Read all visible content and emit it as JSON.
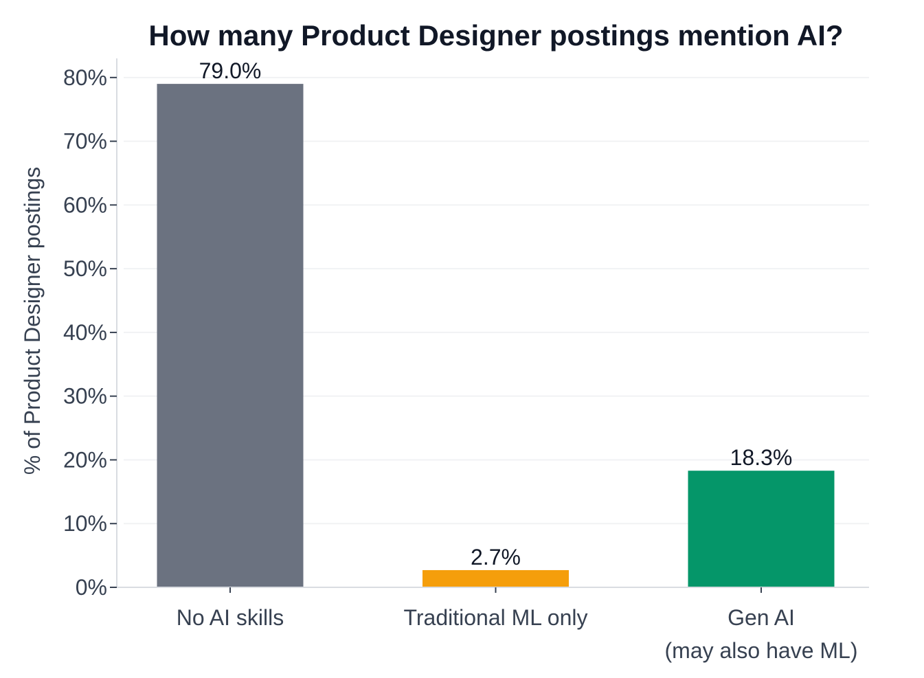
{
  "chart_data": {
    "type": "bar",
    "title": "How many Product Designer postings mention AI?",
    "ylabel": "% of Product Designer postings",
    "xlabel": "",
    "categories": [
      [
        "No AI skills"
      ],
      [
        "Traditional ML only"
      ],
      [
        "Gen AI",
        "(may also have ML)"
      ]
    ],
    "values": [
      79.0,
      2.7,
      18.3
    ],
    "data_labels": [
      "79.0%",
      "2.7%",
      "18.3%"
    ],
    "colors": [
      "#6b7280",
      "#f59e0b",
      "#059669"
    ],
    "ylim": [
      0,
      83
    ],
    "yticks": [
      0,
      10,
      20,
      30,
      40,
      50,
      60,
      70,
      80
    ],
    "ytick_labels": [
      "0%",
      "10%",
      "20%",
      "30%",
      "40%",
      "50%",
      "60%",
      "70%",
      "80%"
    ],
    "grid": true,
    "legend": "none"
  }
}
